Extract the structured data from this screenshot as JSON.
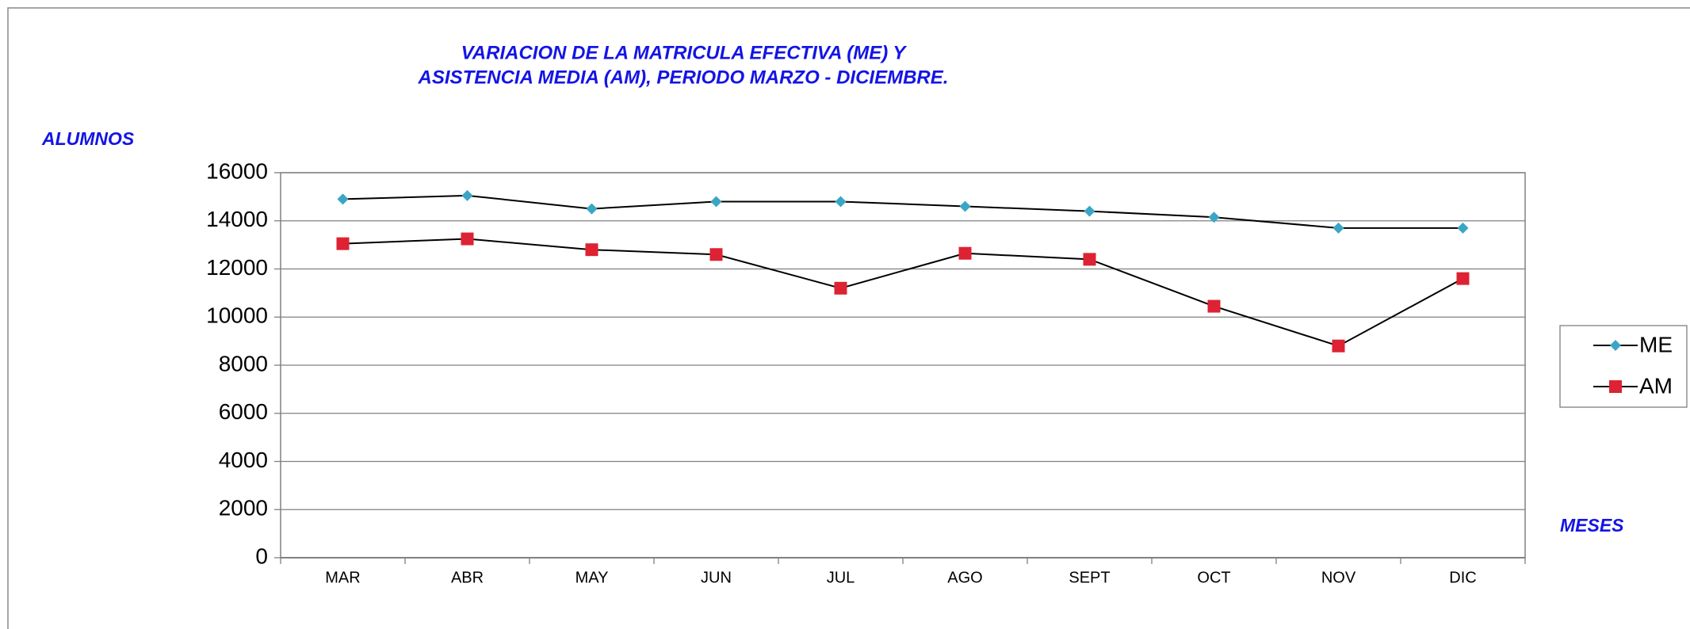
{
  "chart_data": {
    "type": "line",
    "title": [
      "VARIACION DE LA MATRICULA EFECTIVA (ME) Y",
      "ASISTENCIA MEDIA (AM), PERIODO MARZO - DICIEMBRE."
    ],
    "y_label": "ALUMNOS",
    "x_label": "MESES",
    "categories": [
      "MAR",
      "ABR",
      "MAY",
      "JUN",
      "JUL",
      "AGO",
      "SEPT",
      "OCT",
      "NOV",
      "DIC"
    ],
    "series": [
      {
        "name": "ME",
        "color": "#3aa6c4",
        "marker": "diamond",
        "values": [
          14900,
          15050,
          14500,
          14800,
          14800,
          14600,
          14400,
          14150,
          13700,
          13700
        ]
      },
      {
        "name": "AM",
        "color": "#dd2233",
        "marker": "square",
        "values": [
          13050,
          13250,
          12800,
          12600,
          11200,
          12650,
          12400,
          10450,
          8800,
          11600
        ]
      }
    ],
    "ylim": [
      0,
      16000
    ],
    "yticks": [
      0,
      2000,
      4000,
      6000,
      8000,
      10000,
      12000,
      14000,
      16000
    ],
    "grid": true,
    "legend": "right"
  }
}
